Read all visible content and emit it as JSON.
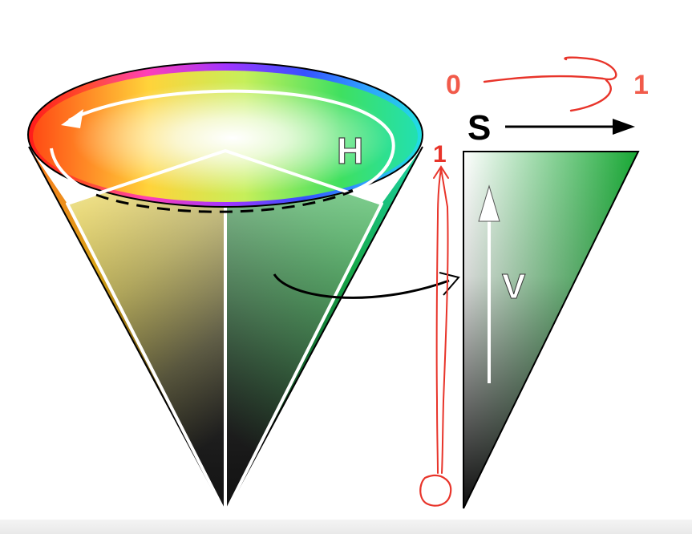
{
  "labels": {
    "hue": "H",
    "saturation": "S",
    "value": "V"
  },
  "annotations": {
    "sat_start": "0",
    "sat_end": "1",
    "value_top": "1",
    "value_bottom": "0"
  },
  "colors": {
    "annotation_red": "#e8342a",
    "saturation_label_red": "#f15a4a",
    "triangle_green": "#1aa035",
    "outline": "#000000",
    "edge_white": "#ffffff"
  }
}
